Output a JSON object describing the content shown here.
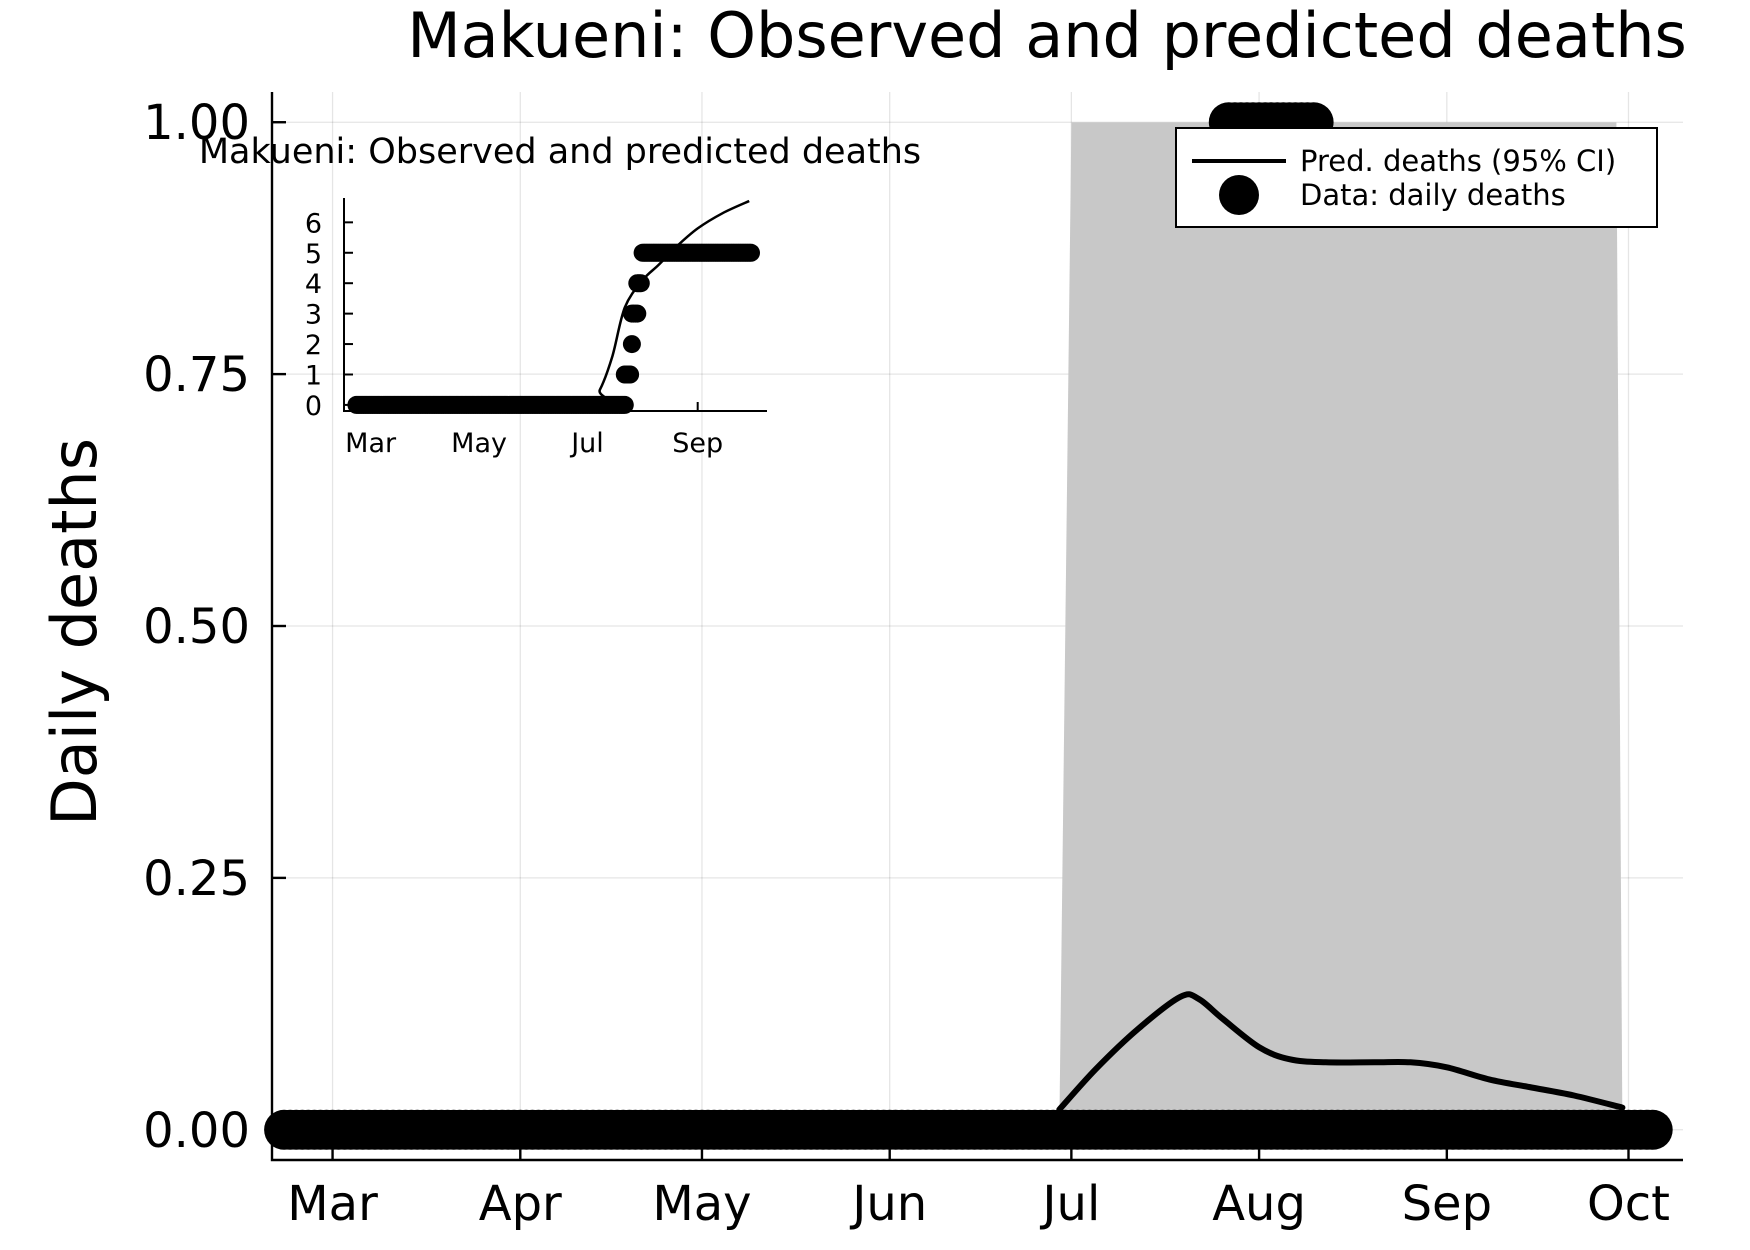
{
  "chart_data": {
    "main": {
      "type": "line",
      "title": "Makueni: Observed and predicted deaths",
      "xlabel": "",
      "ylabel": "Daily deaths",
      "x_ticks": [
        "Mar",
        "Apr",
        "May",
        "Jun",
        "Jul",
        "Aug",
        "Sep",
        "Oct"
      ],
      "x_tick_dates": [
        "2020-03-01",
        "2020-04-01",
        "2020-05-01",
        "2020-06-01",
        "2020-07-01",
        "2020-08-01",
        "2020-09-01",
        "2020-10-01"
      ],
      "y_ticks": [
        "0.00",
        "0.25",
        "0.50",
        "0.75",
        "1.00"
      ],
      "y_tick_values": [
        0,
        0.25,
        0.5,
        0.75,
        1.0
      ],
      "xlim": [
        "2020-02-20",
        "2020-10-10"
      ],
      "ylim": [
        -0.03,
        1.03
      ],
      "grid": true,
      "legend_position": "top-right",
      "legend": [
        {
          "label": "Pred. deaths (95% CI)",
          "kind": "line"
        },
        {
          "label": "Data: daily deaths",
          "kind": "marker"
        }
      ],
      "colors": {
        "line": "#000000",
        "band": "#c8c8c8",
        "markers": "#000000"
      },
      "series": [
        {
          "type": "band",
          "x": [
            "2020-06-29",
            "2020-07-01",
            "2020-09-29",
            "2020-09-30"
          ],
          "lower": [
            0,
            0,
            0,
            0
          ],
          "upper": [
            0,
            1,
            1,
            0
          ]
        },
        {
          "type": "line",
          "x": [
            "2020-06-29",
            "2020-07-05",
            "2020-07-12",
            "2020-07-19",
            "2020-07-22",
            "2020-07-26",
            "2020-08-01",
            "2020-08-06",
            "2020-08-12",
            "2020-08-20",
            "2020-08-26",
            "2020-09-01",
            "2020-09-08",
            "2020-09-15",
            "2020-09-22",
            "2020-09-30"
          ],
          "y": [
            0.02,
            0.06,
            0.1,
            0.132,
            0.13,
            0.11,
            0.082,
            0.07,
            0.067,
            0.067,
            0.067,
            0.062,
            0.05,
            0.042,
            0.034,
            0.022
          ]
        },
        {
          "type": "scatter",
          "segments": [
            {
              "start": "2020-02-22",
              "end": "2020-10-05",
              "y": 0
            },
            {
              "start": "2020-07-27",
              "end": "2020-08-10",
              "y": 1
            }
          ]
        }
      ]
    },
    "inset": {
      "type": "line",
      "title": "Makueni: Observed and predicted deaths",
      "x_ticks": [
        "Mar",
        "May",
        "Jul",
        "Sep"
      ],
      "x_tick_dates": [
        "2020-03-01",
        "2020-05-01",
        "2020-07-01",
        "2020-09-01"
      ],
      "y_ticks": [
        "0",
        "1",
        "2",
        "3",
        "4",
        "5",
        "6"
      ],
      "y_tick_values": [
        0,
        1,
        2,
        3,
        4,
        5,
        6
      ],
      "xlim": [
        "2020-02-15",
        "2020-10-10"
      ],
      "ylim": [
        -0.2,
        6.8
      ],
      "series": [
        {
          "type": "line",
          "x": [
            "2020-02-20",
            "2020-07-01",
            "2020-07-08",
            "2020-07-15",
            "2020-07-22",
            "2020-08-01",
            "2020-08-10",
            "2020-08-20",
            "2020-09-01",
            "2020-09-15",
            "2020-09-30"
          ],
          "y": [
            0,
            0,
            0.5,
            1.6,
            3.2,
            4.1,
            4.6,
            5.2,
            5.8,
            6.3,
            6.7
          ]
        },
        {
          "type": "scatter",
          "segments": [
            {
              "start": "2020-02-22",
              "end": "2020-07-22",
              "y": 0
            },
            {
              "start": "2020-07-22",
              "end": "2020-07-25",
              "y": 1
            },
            {
              "start": "2020-07-26",
              "end": "2020-07-26",
              "y": 2
            },
            {
              "start": "2020-07-26",
              "end": "2020-07-29",
              "y": 3
            },
            {
              "start": "2020-07-29",
              "end": "2020-07-31",
              "y": 4
            },
            {
              "start": "2020-08-01",
              "end": "2020-10-01",
              "y": 5
            }
          ]
        }
      ]
    }
  }
}
